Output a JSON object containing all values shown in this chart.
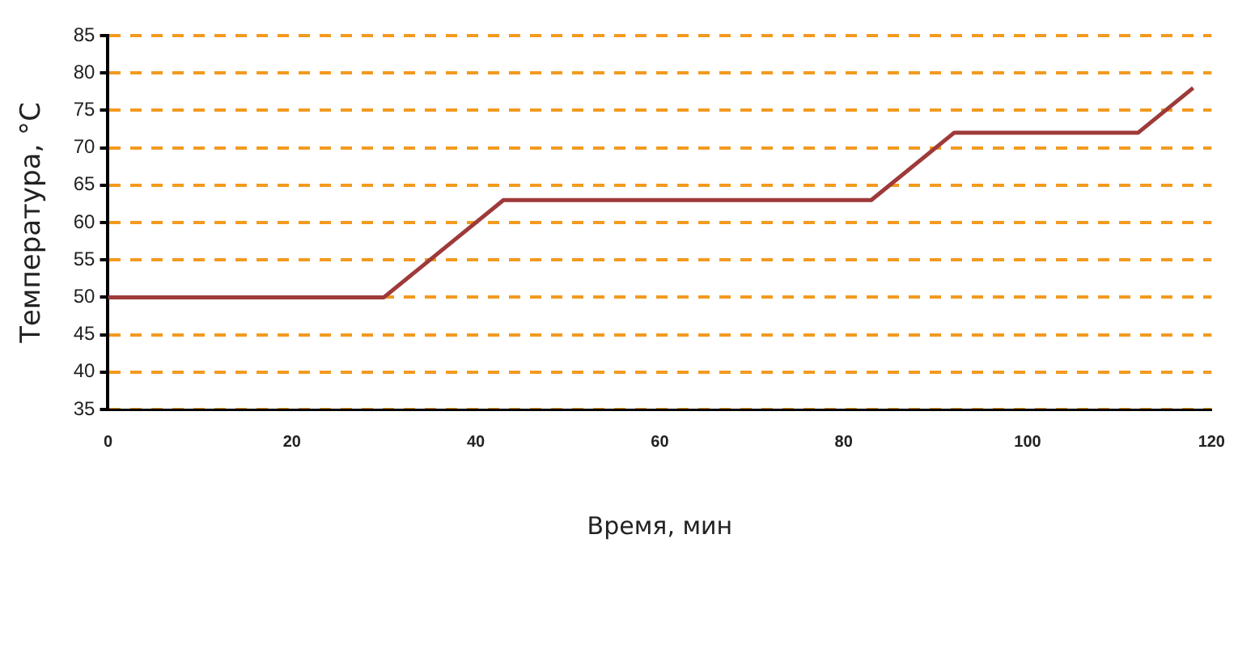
{
  "chart_data": {
    "type": "line",
    "xlabel": "Время, мин",
    "ylabel": "Температура, °С",
    "x": [
      0,
      30,
      43,
      83,
      92,
      112,
      118
    ],
    "series": [
      {
        "color": "#9e3a3a",
        "values": [
          50,
          50,
          63,
          63,
          72,
          72,
          78
        ]
      }
    ],
    "xlim": [
      0,
      120
    ],
    "xticks": [
      0,
      20,
      40,
      60,
      80,
      100,
      120
    ],
    "ylim": [
      35,
      85
    ],
    "yticks": [
      35,
      40,
      45,
      50,
      55,
      60,
      65,
      70,
      75,
      80,
      85
    ],
    "grid": "y",
    "legend": false,
    "marker": "none",
    "line_style": "solid"
  }
}
